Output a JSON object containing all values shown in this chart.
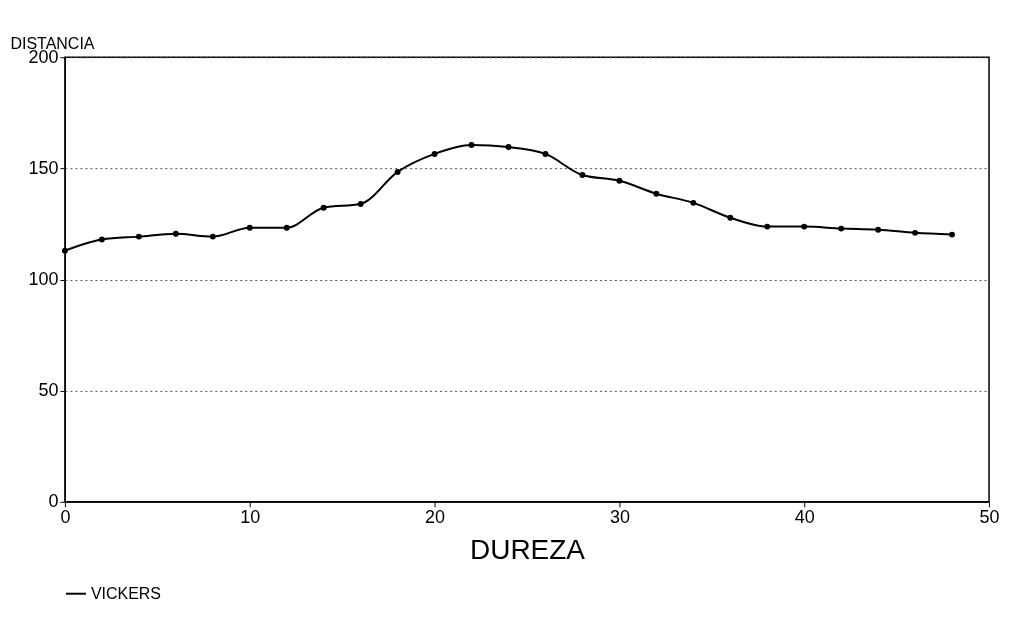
{
  "chart_data": {
    "type": "line",
    "xlabel": "DUREZA",
    "ylabel": "DISTANCIA",
    "x": [
      0,
      2,
      4,
      6,
      8,
      10,
      12,
      14,
      16,
      18,
      20,
      22,
      24,
      26,
      28,
      30,
      32,
      34,
      36,
      38,
      40,
      42,
      44,
      46,
      48
    ],
    "series": [
      {
        "name": "VICKERS",
        "color": "#000000",
        "values": [
          113,
          118,
          119.3,
          120.6,
          119.3,
          123.3,
          123.3,
          132.3,
          134,
          148.4,
          156.5,
          160.5,
          159.6,
          156.5,
          147,
          144.4,
          138.6,
          134.5,
          127.8,
          123.8,
          123.8,
          122.9,
          122.4,
          121,
          120.2
        ]
      }
    ],
    "xlim": [
      0,
      50
    ],
    "xticks": [
      0,
      10,
      20,
      30,
      40,
      50
    ],
    "ylim": [
      0,
      200
    ],
    "yticks": [
      0,
      50,
      100,
      150,
      200
    ],
    "grid": "y",
    "legend": "bottom",
    "marker": "circle",
    "line_style": "solid"
  }
}
